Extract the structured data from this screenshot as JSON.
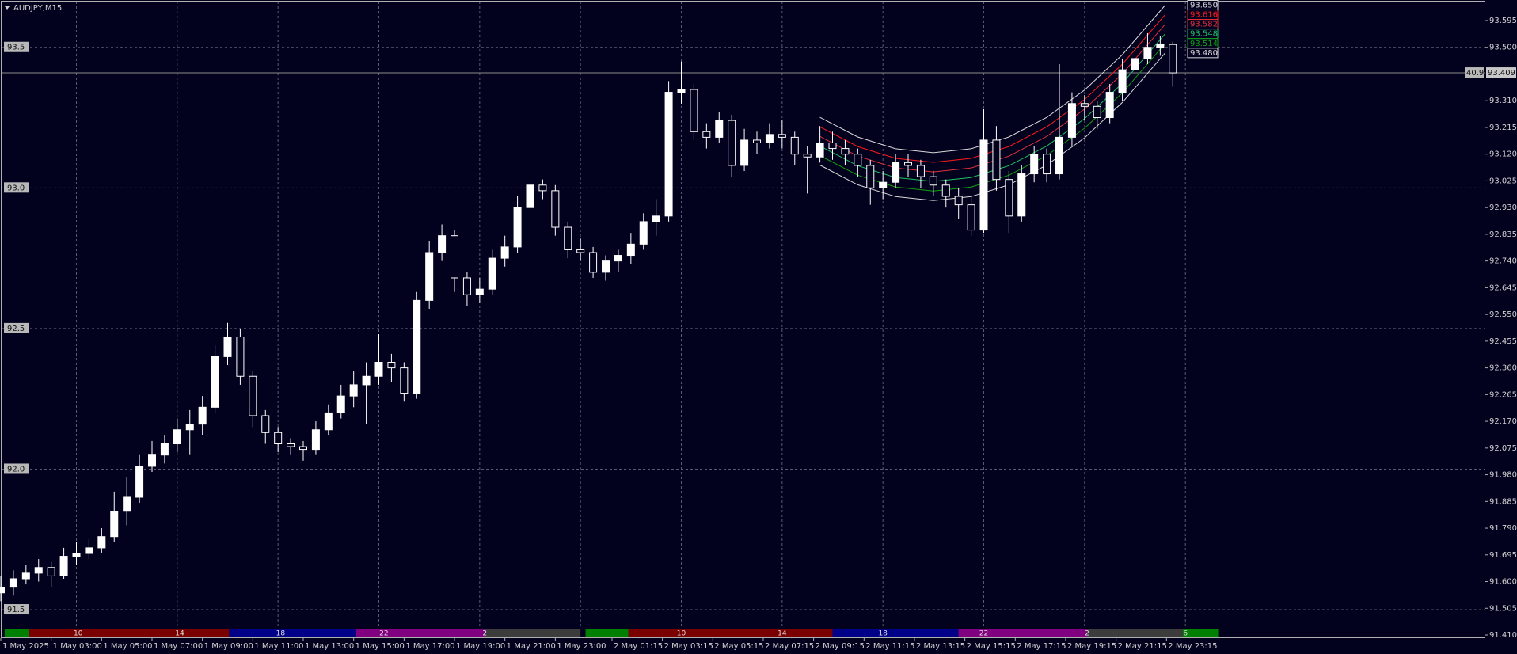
{
  "chart_data": {
    "type": "candlestick",
    "title": "AUDJPY,M15",
    "up_color": "#ffffff",
    "down_color": "#02021f",
    "x": [
      1,
      1.5,
      2,
      2.5,
      3,
      3.5,
      4,
      4.5,
      5,
      5.5,
      6,
      6.5,
      7,
      7.5,
      8,
      8.5,
      9,
      9.5,
      10,
      10.5,
      11,
      11.5,
      12,
      12.5,
      13,
      13.5,
      14,
      14.5,
      15,
      15.5,
      16,
      16.5,
      17,
      17.5,
      18,
      18.5,
      19,
      19.5,
      20,
      20.5,
      21,
      21.5,
      22,
      22.5,
      23,
      23.5,
      24,
      24.5,
      25,
      25.5,
      26,
      26.5,
      27,
      27.5,
      28,
      28.5,
      29,
      29.5,
      30,
      30.5,
      31,
      31.5,
      32,
      32.5,
      33,
      33.5,
      34,
      34.5,
      35,
      35.5,
      36,
      36.5,
      37,
      37.5,
      38,
      38.5,
      39,
      39.5,
      40,
      40.5,
      41,
      41.5,
      42,
      42.5,
      43,
      43.5,
      44,
      44.5,
      45,
      45.5,
      46,
      46.5,
      47,
      47.5
    ],
    "open": [
      91.56,
      91.58,
      91.61,
      91.63,
      91.65,
      91.62,
      91.69,
      91.7,
      91.72,
      91.76,
      91.85,
      91.9,
      92.01,
      92.05,
      92.09,
      92.14,
      92.16,
      92.22,
      92.4,
      92.47,
      92.33,
      92.19,
      92.13,
      92.09,
      92.08,
      92.07,
      92.14,
      92.2,
      92.26,
      92.3,
      92.33,
      92.38,
      92.36,
      92.27,
      92.6,
      92.77,
      92.83,
      92.68,
      92.62,
      92.64,
      92.75,
      92.79,
      92.93,
      93.01,
      92.99,
      92.86,
      92.78,
      92.77,
      92.7,
      92.74,
      92.76,
      92.8,
      92.88,
      92.9,
      93.34,
      93.35,
      93.2,
      93.18,
      93.24,
      93.08,
      93.17,
      93.16,
      93.19,
      93.18,
      93.12,
      93.11,
      93.16,
      93.14,
      93.12,
      93.08,
      93.0,
      93.02,
      93.09,
      93.08,
      93.04,
      93.01,
      92.97,
      92.94,
      92.85,
      93.17,
      93.03,
      92.9,
      93.05,
      93.12,
      93.05,
      93.18,
      93.3,
      93.29,
      93.25,
      93.34,
      93.42,
      93.46,
      93.5,
      93.51
    ],
    "high": [
      91.62,
      91.64,
      91.66,
      91.68,
      91.67,
      91.72,
      91.74,
      91.75,
      91.79,
      91.92,
      91.97,
      92.05,
      92.1,
      92.12,
      92.18,
      92.21,
      92.26,
      92.44,
      92.52,
      92.5,
      92.35,
      92.21,
      92.15,
      92.11,
      92.1,
      92.17,
      92.23,
      92.3,
      92.35,
      92.38,
      92.48,
      92.41,
      92.38,
      92.63,
      92.81,
      92.87,
      92.85,
      92.7,
      92.68,
      92.78,
      92.83,
      92.97,
      93.04,
      93.03,
      93.01,
      92.88,
      92.82,
      92.79,
      92.76,
      92.78,
      92.84,
      92.91,
      92.96,
      93.38,
      93.45,
      93.37,
      93.23,
      93.27,
      93.26,
      93.21,
      93.2,
      93.23,
      93.24,
      93.2,
      93.15,
      93.22,
      93.2,
      93.17,
      93.14,
      93.1,
      93.06,
      93.12,
      93.12,
      93.1,
      93.06,
      93.03,
      93.0,
      92.97,
      93.28,
      93.22,
      93.06,
      93.08,
      93.15,
      93.14,
      93.44,
      93.34,
      93.33,
      93.31,
      93.37,
      93.46,
      93.52,
      93.55,
      93.54,
      93.52
    ],
    "low": [
      91.53,
      91.55,
      91.59,
      91.6,
      91.58,
      91.61,
      91.66,
      91.68,
      91.7,
      91.74,
      91.8,
      91.88,
      91.99,
      92.02,
      92.06,
      92.05,
      92.12,
      92.2,
      92.37,
      92.3,
      92.15,
      92.09,
      92.06,
      92.05,
      92.03,
      92.05,
      92.12,
      92.18,
      92.22,
      92.16,
      92.3,
      92.31,
      92.24,
      92.25,
      92.57,
      92.74,
      92.63,
      92.58,
      92.59,
      92.62,
      92.72,
      92.77,
      92.9,
      92.96,
      92.83,
      92.75,
      92.74,
      92.68,
      92.67,
      92.7,
      92.73,
      92.78,
      92.83,
      92.88,
      93.3,
      93.17,
      93.14,
      93.16,
      93.04,
      93.06,
      93.12,
      93.14,
      93.14,
      93.08,
      92.98,
      93.09,
      93.1,
      93.08,
      93.04,
      92.94,
      92.96,
      93.0,
      93.04,
      93.0,
      92.97,
      92.93,
      92.89,
      92.83,
      92.84,
      92.99,
      92.84,
      92.88,
      93.02,
      93.02,
      93.03,
      93.15,
      93.24,
      93.21,
      93.23,
      93.31,
      93.39,
      93.44,
      93.47,
      93.36
    ],
    "close": [
      91.58,
      91.61,
      91.63,
      91.65,
      91.62,
      91.69,
      91.7,
      91.72,
      91.76,
      91.85,
      91.9,
      92.01,
      92.05,
      92.09,
      92.14,
      92.16,
      92.22,
      92.4,
      92.47,
      92.33,
      92.19,
      92.13,
      92.09,
      92.08,
      92.07,
      92.14,
      92.2,
      92.26,
      92.3,
      92.33,
      92.38,
      92.36,
      92.27,
      92.6,
      92.77,
      92.83,
      92.68,
      92.62,
      92.64,
      92.75,
      92.79,
      92.93,
      93.01,
      92.99,
      92.86,
      92.78,
      92.77,
      92.7,
      92.74,
      92.76,
      92.8,
      92.88,
      92.9,
      93.34,
      93.35,
      93.2,
      93.18,
      93.24,
      93.08,
      93.17,
      93.16,
      93.19,
      93.18,
      93.12,
      93.11,
      93.16,
      93.14,
      93.12,
      93.08,
      93.0,
      93.02,
      93.09,
      93.08,
      93.04,
      93.01,
      92.97,
      92.94,
      92.85,
      93.17,
      93.03,
      92.9,
      93.05,
      93.12,
      93.05,
      93.18,
      93.3,
      93.29,
      93.25,
      93.34,
      93.42,
      93.46,
      93.5,
      93.51,
      93.409
    ],
    "xlim": [
      1,
      59.9
    ],
    "ylim": [
      91.41,
      93.595
    ],
    "xticks": [
      {
        "value": 1,
        "label": "1 May 2025"
      },
      {
        "value": 3,
        "label": "1 May 03:00"
      },
      {
        "value": 5,
        "label": "1 May 05:00"
      },
      {
        "value": 7,
        "label": "1 May 07:00"
      },
      {
        "value": 9,
        "label": "1 May 09:00"
      },
      {
        "value": 11,
        "label": "1 May 11:00"
      },
      {
        "value": 13,
        "label": "1 May 13:00"
      },
      {
        "value": 15,
        "label": "1 May 15:00"
      },
      {
        "value": 17,
        "label": "1 May 17:00"
      },
      {
        "value": 19,
        "label": "1 May 19:00"
      },
      {
        "value": 21,
        "label": "1 May 21:00"
      },
      {
        "value": 23,
        "label": "1 May 23:00"
      },
      {
        "value": 25.25,
        "label": "2 May 01:15"
      },
      {
        "value": 27.25,
        "label": "2 May 03:15"
      },
      {
        "value": 29.25,
        "label": "2 May 05:15"
      },
      {
        "value": 31.25,
        "label": "2 May 07:15"
      },
      {
        "value": 33.25,
        "label": "2 May 09:15"
      },
      {
        "value": 35.25,
        "label": "2 May 11:15"
      },
      {
        "value": 37.25,
        "label": "2 May 13:15"
      },
      {
        "value": 39.25,
        "label": "2 May 15:15"
      },
      {
        "value": 41.25,
        "label": "2 May 17:15"
      },
      {
        "value": 43.25,
        "label": "2 May 19:15"
      },
      {
        "value": 45.25,
        "label": "2 May 21:15"
      },
      {
        "value": 47.25,
        "label": "2 May 23:15"
      }
    ],
    "xgrid": [
      4,
      8,
      12,
      16,
      20,
      24,
      28,
      32,
      36,
      40,
      44,
      48
    ],
    "yticks": [
      93.595,
      {
        "value": 93.5,
        "label": "93.500"
      },
      {
        "value": 93.31,
        "label": "93.310"
      },
      93.215,
      {
        "value": 93.12,
        "label": "93.120"
      },
      93.025,
      {
        "value": 92.93,
        "label": "92.930"
      },
      92.835,
      {
        "value": 92.74,
        "label": "92.740"
      },
      92.645,
      {
        "value": 92.55,
        "label": "92.550"
      },
      92.455,
      {
        "value": 92.36,
        "label": "92.360"
      },
      92.265,
      {
        "value": 92.17,
        "label": "92.170"
      },
      92.075,
      {
        "value": 91.98,
        "label": "91.980"
      },
      91.885,
      {
        "value": 91.79,
        "label": "91.790"
      },
      91.695,
      {
        "value": 91.6,
        "label": "91.600"
      },
      91.505,
      {
        "value": 91.41,
        "label": "91.410"
      }
    ],
    "ygrid": [
      93.5,
      {
        "value": 93,
        "label": "93.0"
      },
      92.5,
      {
        "value": 92,
        "label": "92.0"
      },
      91.5
    ],
    "spread_label": "40.9",
    "sessions": [
      {
        "start": 1.15,
        "end": 2.11,
        "color": "#008000"
      },
      {
        "start": 2.11,
        "end": 10.06,
        "color": "#7a0000"
      },
      {
        "start": 10.06,
        "end": 15.1,
        "color": "#000088"
      },
      {
        "start": 15.1,
        "end": 20.2,
        "color": "#800080"
      },
      {
        "start": 20.2,
        "end": 24.0,
        "color": "#3c3c3c"
      },
      {
        "start": 24.2,
        "end": 25.9,
        "color": "#008000"
      },
      {
        "start": 25.9,
        "end": 34.0,
        "color": "#7a0000"
      },
      {
        "start": 34.0,
        "end": 39.0,
        "color": "#000088"
      },
      {
        "start": 39.0,
        "end": 44.1,
        "color": "#800080"
      },
      {
        "start": 44.1,
        "end": 47.9,
        "color": "#3c3c3c"
      },
      {
        "start": 47.9,
        "end": 49.3,
        "color": "#008000"
      }
    ],
    "session_labels": [
      {
        "value": 4.07,
        "label": "10"
      },
      {
        "value": 8.1,
        "label": "14"
      },
      {
        "value": 12.1,
        "label": "18"
      },
      {
        "value": 16.2,
        "label": "22"
      },
      {
        "value": 20.2,
        "label": "2"
      },
      {
        "value": 28,
        "label": "10"
      },
      {
        "value": 32,
        "label": "14"
      },
      {
        "value": 36,
        "label": "18"
      },
      {
        "value": 40,
        "label": "22"
      },
      {
        "value": 44.1,
        "label": "2"
      },
      {
        "value": 48,
        "label": "6"
      }
    ],
    "channel": {
      "x": [
        33.5,
        35,
        36.5,
        38,
        39.5,
        41,
        42.5,
        44,
        45.5,
        47.2
      ],
      "lines": [
        {
          "color": "#d8d8d8",
          "values": [
            93.251,
            93.181,
            93.139,
            93.125,
            93.139,
            93.181,
            93.251,
            93.348,
            93.474,
            93.65
          ],
          "end_label": "93.650"
        },
        {
          "color": "#ff1a1a",
          "values": [
            93.217,
            93.147,
            93.105,
            93.091,
            93.105,
            93.147,
            93.217,
            93.314,
            93.44,
            93.616
          ],
          "end_label": "93.616"
        },
        {
          "color": "#e0303a",
          "values": [
            93.183,
            93.113,
            93.071,
            93.057,
            93.071,
            93.113,
            93.183,
            93.28,
            93.406,
            93.582
          ],
          "end_label": "93.582"
        },
        {
          "color": "#20c060",
          "values": [
            93.149,
            93.079,
            93.037,
            93.023,
            93.037,
            93.079,
            93.149,
            93.246,
            93.372,
            93.548
          ],
          "end_label": "93.548"
        },
        {
          "color": "#10a010",
          "values": [
            93.115,
            93.045,
            93.003,
            92.989,
            93.003,
            93.045,
            93.115,
            93.212,
            93.338,
            93.514
          ],
          "end_label": "93.514"
        },
        {
          "color": "#d8d8d8",
          "values": [
            93.081,
            93.011,
            92.969,
            92.955,
            92.969,
            93.011,
            93.081,
            93.178,
            93.304,
            93.48
          ],
          "end_label": "93.480"
        }
      ]
    }
  }
}
